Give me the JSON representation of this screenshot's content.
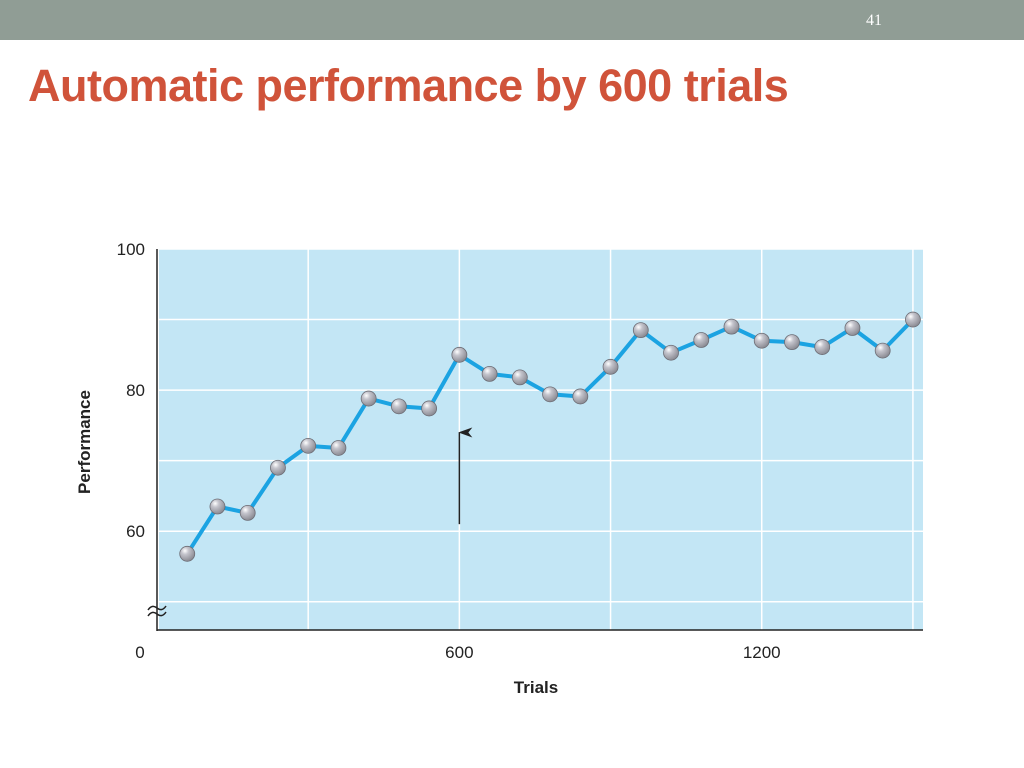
{
  "slide": {
    "number": "41",
    "title": "Automatic performance by 600 trials"
  },
  "colors": {
    "topbar": "#909d95",
    "title": "#d0533a",
    "plot_background": "#c3e6f5",
    "line": "#1ba3e2",
    "marker": "#8c8c94"
  },
  "chart_data": {
    "type": "line",
    "xlabel": "Trials",
    "ylabel": "Performance",
    "xlim": [
      0,
      1520
    ],
    "ylim": [
      46,
      100
    ],
    "x_ticks": [
      0,
      600,
      1200
    ],
    "y_ticks": [
      60,
      80,
      100
    ],
    "y_axis_break": true,
    "grid": true,
    "grid_x": [
      300,
      600,
      900,
      1200,
      1500
    ],
    "grid_y": [
      50,
      60,
      70,
      80,
      90,
      100
    ],
    "annotation": {
      "type": "arrow",
      "x": 600,
      "y_from": 61,
      "y_to": 74
    },
    "series": [
      {
        "x": [
          60,
          120,
          180,
          240,
          300,
          360,
          420,
          480,
          540,
          600,
          660,
          720,
          780,
          840,
          900,
          960,
          1020,
          1080,
          1140,
          1200,
          1260,
          1320,
          1380,
          1440,
          1500
        ],
        "y": [
          56.8,
          63.5,
          62.6,
          69,
          72.1,
          71.8,
          78.8,
          77.7,
          77.4,
          85,
          82.3,
          81.8,
          79.4,
          79.1,
          83.3,
          88.5,
          85.3,
          87.1,
          89,
          87,
          86.8,
          86.1,
          88.8,
          85.6,
          90
        ]
      }
    ]
  }
}
